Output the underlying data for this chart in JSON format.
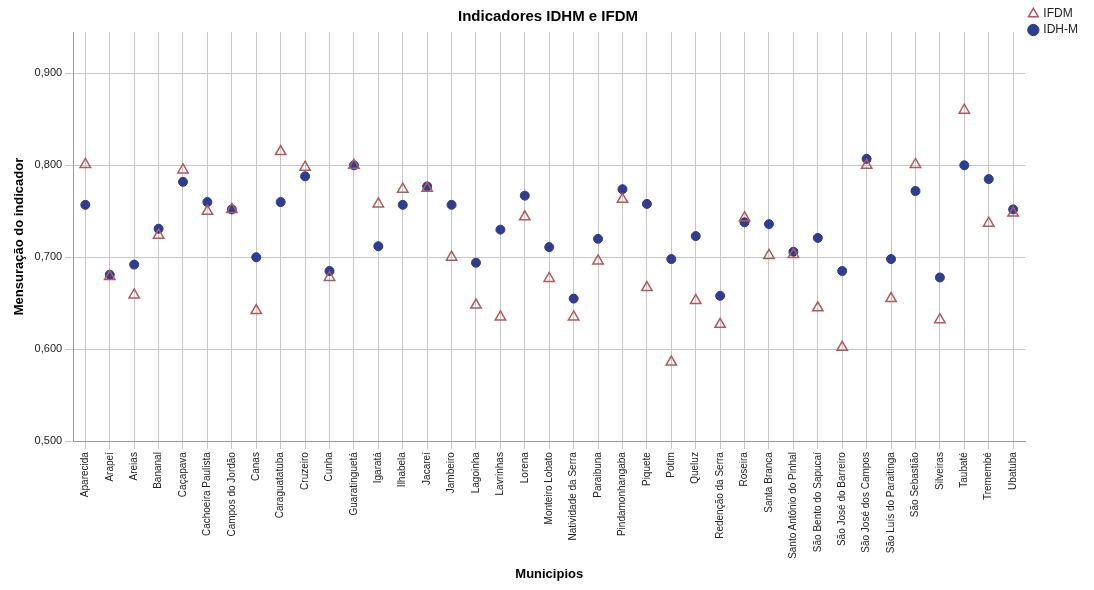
{
  "chart_data": {
    "type": "scatter",
    "title": "Indicadores IDHM e IFDM",
    "xlabel": "Municipios",
    "ylabel": "Mensuração do indicador",
    "categories": [
      "Aparecida",
      "Arapeí",
      "Areias",
      "Bananal",
      "Caçapava",
      "Cachoeira Paulista",
      "Campos do Jordão",
      "Canas",
      "Caraguatatuba",
      "Cruzeiro",
      "Cunha",
      "Guaratinguetá",
      "Igaratá",
      "Ilhabela",
      "Jacareí",
      "Jambeiro",
      "Lagoinha",
      "Lavrinhas",
      "Lorena",
      "Monteiro Lobato",
      "Natividade da Serra",
      "Paraibuna",
      "Pindamonhangaba",
      "Piquete",
      "Potim",
      "Queluz",
      "Redenção da Serra",
      "Roseira",
      "Santa Branca",
      "Santo Antônio do Pinhal",
      "São Bento do Sapucaí",
      "São José do Barreiro",
      "São José dos Campos",
      "São Luís do Paraitinga",
      "São Sebastião",
      "Silveiras",
      "Taubaté",
      "Tremembé",
      "Ubatuba"
    ],
    "series": [
      {
        "name": "IDH-M",
        "color": "#2e3d8f",
        "marker": "circle",
        "values": [
          0.757,
          0.681,
          0.692,
          0.731,
          0.782,
          0.76,
          0.752,
          0.7,
          0.76,
          0.788,
          0.685,
          0.8,
          0.712,
          0.757,
          0.777,
          0.757,
          0.694,
          0.73,
          0.767,
          0.711,
          0.655,
          0.72,
          0.774,
          0.758,
          0.698,
          0.723,
          0.658,
          0.738,
          0.736,
          0.706,
          0.721,
          0.685,
          0.807,
          0.698,
          0.772,
          0.678,
          0.8,
          0.785,
          0.752
        ]
      },
      {
        "name": "IFDM",
        "color": "#b5585a",
        "marker": "triangle",
        "values": [
          0.801,
          0.679,
          0.659,
          0.724,
          0.795,
          0.75,
          0.752,
          0.642,
          0.815,
          0.798,
          0.678,
          0.8,
          0.758,
          0.774,
          0.775,
          0.7,
          0.648,
          0.635,
          0.744,
          0.677,
          0.635,
          0.696,
          0.763,
          0.667,
          0.586,
          0.653,
          0.627,
          0.743,
          0.702,
          0.703,
          0.645,
          0.602,
          0.8,
          0.655,
          0.801,
          0.632,
          0.86,
          0.737,
          0.748
        ]
      }
    ],
    "ylim": [
      0.5,
      0.945
    ],
    "yticks": [
      {
        "value": 0.5,
        "label": "0,500"
      },
      {
        "value": 0.6,
        "label": "0,600"
      },
      {
        "value": 0.7,
        "label": "0,700"
      },
      {
        "value": 0.8,
        "label": "0,800"
      },
      {
        "value": 0.9,
        "label": "0,900"
      }
    ],
    "grid": true,
    "legend": "top right"
  }
}
